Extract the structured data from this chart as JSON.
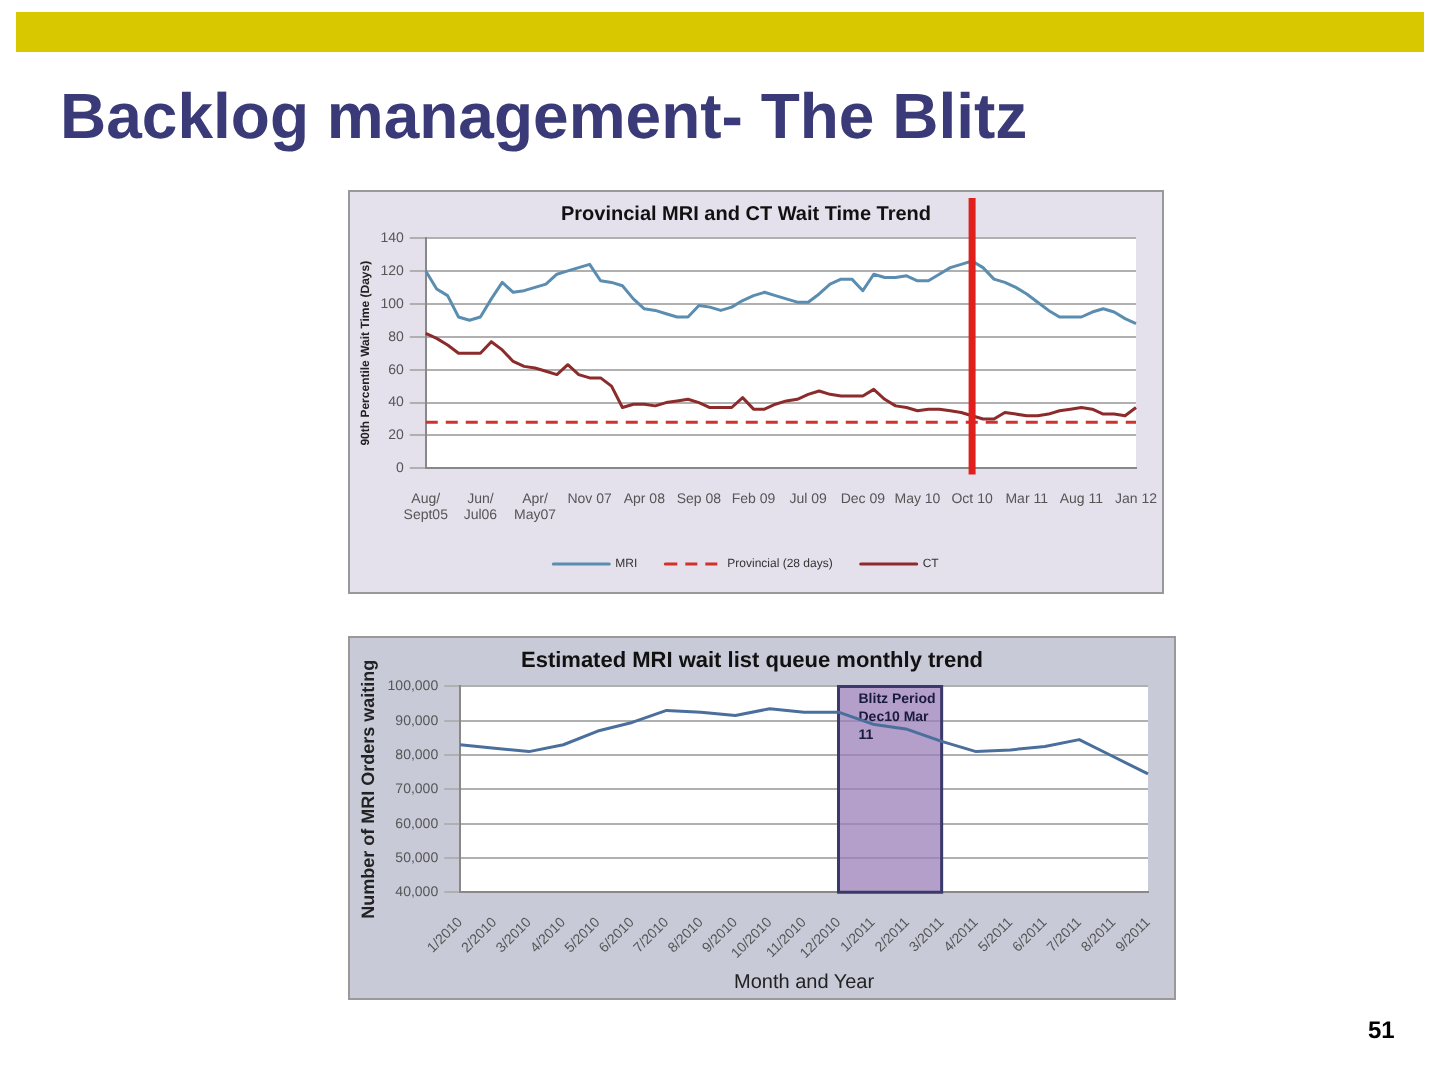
{
  "chart_data": [
    {
      "type": "line",
      "title": "Provincial MRI and CT Wait Time Trend",
      "ylabel": "90th Percentile Wait Time (Days)",
      "annotations": [
        "Backlog management- The Blitz"
      ],
      "marker": "none",
      "grid": "y",
      "legend": "bottom",
      "categories": [
        "Aug/\nSept05",
        null,
        null,
        null,
        null,
        "Jun/\nJul06",
        null,
        null,
        null,
        null,
        "Apr/\nMay07",
        null,
        null,
        null,
        null,
        "Nov 07",
        null,
        null,
        null,
        null,
        "Apr 08",
        null,
        null,
        null,
        null,
        "Sep 08",
        null,
        null,
        null,
        null,
        "Feb 09",
        null,
        null,
        null,
        null,
        "Jul 09",
        null,
        null,
        null,
        null,
        "Dec 09",
        null,
        null,
        null,
        null,
        "May 10",
        null,
        null,
        null,
        null,
        "Oct 10",
        null,
        null,
        null,
        null,
        "Mar 11",
        null,
        null,
        null,
        null,
        "Aug 11",
        null,
        null,
        null,
        null,
        "Jan 12"
      ],
      "ylim": [
        0,
        140
      ],
      "yticks": [
        0,
        20,
        40,
        60,
        80,
        100,
        120,
        140
      ],
      "ref_lines": [
        {
          "axis": "x",
          "value": "Oct 10",
          "color": "#e0201c"
        }
      ],
      "series": [
        {
          "name": "MRI",
          "color": "#5b8db0",
          "values": [
            120,
            109,
            105,
            92,
            90,
            92,
            103,
            113,
            107,
            108,
            110,
            112,
            118,
            120,
            122,
            124,
            114,
            113,
            111,
            103,
            97,
            96,
            94,
            92,
            92,
            99,
            98,
            96,
            98,
            102,
            105,
            107,
            105,
            103,
            101,
            101,
            106,
            112,
            115,
            115,
            108,
            118,
            116,
            116,
            117,
            114,
            114,
            118,
            122,
            124,
            126,
            122,
            115,
            113,
            110,
            106,
            101,
            96,
            92,
            92,
            92,
            95,
            97,
            95,
            91,
            88
          ]
        },
        {
          "name": "Provincial (28 days)",
          "color": "#d0312d",
          "line_style": "dashed",
          "values": [
            28,
            28,
            28,
            28,
            28,
            28,
            28,
            28,
            28,
            28,
            28,
            28,
            28,
            28,
            28,
            28,
            28,
            28,
            28,
            28,
            28,
            28,
            28,
            28,
            28,
            28,
            28,
            28,
            28,
            28,
            28,
            28,
            28,
            28,
            28,
            28,
            28,
            28,
            28,
            28,
            28,
            28,
            28,
            28,
            28,
            28,
            28,
            28,
            28,
            28,
            28,
            28,
            28,
            28,
            28,
            28,
            28,
            28,
            28,
            28,
            28,
            28,
            28,
            28,
            28,
            28
          ]
        },
        {
          "name": "CT",
          "color": "#8c2b2b",
          "values": [
            82,
            79,
            75,
            70,
            70,
            70,
            77,
            72,
            65,
            62,
            61,
            59,
            57,
            63,
            57,
            55,
            55,
            50,
            37,
            39,
            39,
            38,
            40,
            41,
            42,
            40,
            37,
            37,
            37,
            43,
            36,
            36,
            39,
            41,
            42,
            45,
            47,
            45,
            44,
            44,
            44,
            48,
            42,
            38,
            37,
            35,
            36,
            36,
            35,
            34,
            32,
            30,
            30,
            34,
            33,
            32,
            32,
            33,
            35,
            36,
            37,
            36,
            33,
            33,
            32,
            37
          ]
        }
      ]
    },
    {
      "type": "line",
      "title": "Estimated MRI wait list queue monthly trend",
      "xlabel": "Month and Year",
      "ylabel": "Number of MRI Orders waiting",
      "annotations": [
        "51"
      ],
      "marker": "none",
      "grid": "y",
      "categories": [
        "1/2010",
        "2/2010",
        "3/2010",
        "4/2010",
        "5/2010",
        "6/2010",
        "7/2010",
        "8/2010",
        "9/2010",
        "10/2010",
        "11/2010",
        "12/2010",
        "1/2011",
        "2/2011",
        "3/2011",
        "4/2011",
        "5/2011",
        "6/2011",
        "7/2011",
        "8/2011",
        "9/2011"
      ],
      "ylim": [
        40000,
        100000
      ],
      "yticks": [
        {
          "value": 40000,
          "label": "40,000"
        },
        {
          "value": 50000,
          "label": "50,000"
        },
        {
          "value": 60000,
          "label": "60,000"
        },
        {
          "value": 70000,
          "label": "70,000"
        },
        {
          "value": 80000,
          "label": "80,000"
        },
        {
          "value": 90000,
          "label": "90,000"
        },
        {
          "value": 100000,
          "label": "100,000"
        }
      ],
      "bands": [
        {
          "axis": "x",
          "from": "12/2010",
          "to": "3/2011",
          "label": "Blitz Period Dec10 Mar 11",
          "color": "#9a7fb8"
        }
      ],
      "series": [
        {
          "color": "#4a6f9c",
          "values": [
            83000,
            82000,
            81000,
            83000,
            87000,
            89500,
            93000,
            92500,
            91500,
            93500,
            92500,
            92500,
            89000,
            87500,
            84000,
            81000,
            81500,
            82500,
            84500,
            79500,
            74500
          ]
        }
      ]
    }
  ]
}
